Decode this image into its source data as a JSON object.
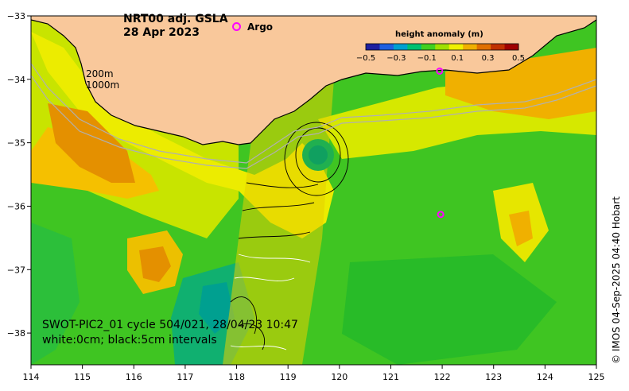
{
  "title": {
    "product": "NRT00 adj. GSLA",
    "date": "28 Apr 2023"
  },
  "legend": {
    "argo_label": "Argo",
    "argo_color": "#ff00ff",
    "depth_contours": [
      "200m",
      "1000m"
    ]
  },
  "colorbar": {
    "title": "height anomaly (m)",
    "tick_labels": [
      "−0.5",
      "−0.3",
      "−0.1",
      "0.1",
      "0.3",
      "0.5"
    ],
    "colors": [
      "#2020a0",
      "#2060e0",
      "#00a0d0",
      "#00c070",
      "#40d020",
      "#a0e000",
      "#f0f000",
      "#f0b000",
      "#e07000",
      "#c03000",
      "#a00000"
    ]
  },
  "axes": {
    "x_ticks": [
      "114",
      "115",
      "116",
      "117",
      "118",
      "119",
      "120",
      "121",
      "122",
      "123",
      "124",
      "125"
    ],
    "y_ticks": [
      "−33",
      "−34",
      "−35",
      "−36",
      "−37",
      "−38"
    ],
    "x_range": [
      114,
      125
    ],
    "y_range": [
      -38.5,
      -33
    ]
  },
  "swot": {
    "line1": "SWOT-PIC2_01 cycle 504/021, 28/04/23 10:47",
    "line2": "white:0cm; black:5cm intervals"
  },
  "credit": "© IMOS 04-Sep-2025 04:40 Hobart",
  "colors": {
    "land": "#f9c89b",
    "ocean_low": "#00aa60",
    "ocean_mid": "#40cc20",
    "ocean_high": "#e6e600",
    "ocean_peak": "#e08c00"
  },
  "argo_floats": [
    {
      "lon": 121.95,
      "lat": -33.87
    },
    {
      "lon": 121.97,
      "lat": -36.13
    }
  ]
}
